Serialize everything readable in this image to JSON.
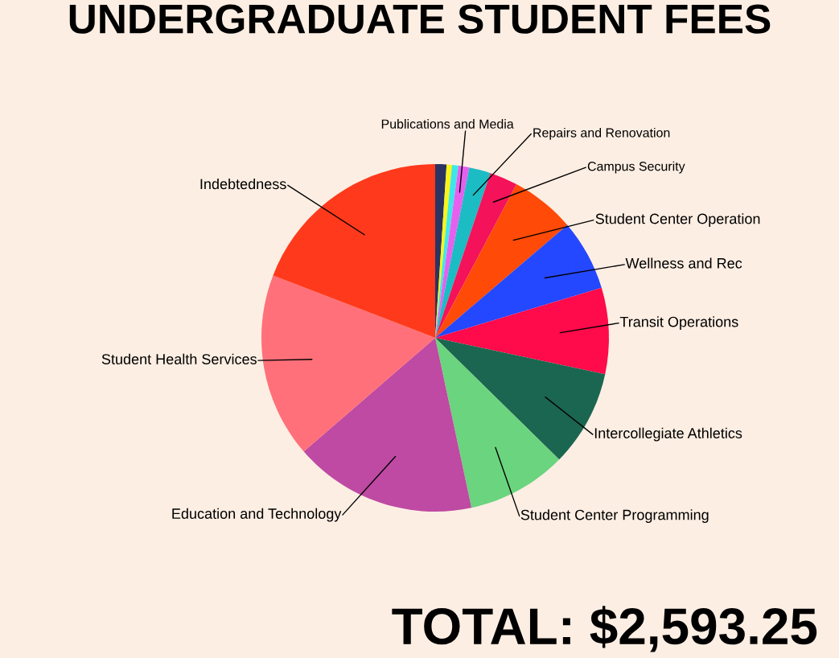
{
  "chart_data": {
    "type": "pie",
    "title": "UNDERGRADUATE STUDENT FEES",
    "categories": [
      null,
      null,
      null,
      "Publications and Media",
      "Repairs and Renovation",
      "Campus Security",
      "Student Center Operation",
      "Wellness and Rec",
      "Transit Operations",
      "Intercollegiate Athletics",
      "Student Center Programming",
      "Education and Technology",
      "Student Health Services",
      "Indebtedness"
    ],
    "values": [
      1.05,
      0.5,
      0.6,
      1.0,
      2.0,
      2.6,
      6.0,
      6.6,
      8.0,
      9.0,
      9.3,
      17.0,
      17.2,
      19.15
    ],
    "colors": [
      "#2b3461",
      "#f8f518",
      "#3de8e8",
      "#e660f0",
      "#1cbcc4",
      "#f4125a",
      "#ff4a08",
      "#2448ff",
      "#ff0a4a",
      "#1b6650",
      "#6bd47e",
      "#be4aa3",
      "#ff707a",
      "#ff3a1c"
    ],
    "annotations": [
      "TOTAL: $2,593.25"
    ],
    "legend": false
  }
}
